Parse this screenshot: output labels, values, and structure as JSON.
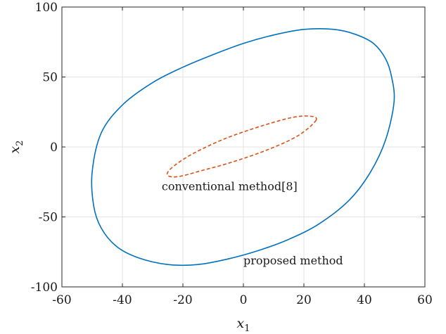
{
  "chart_data": {
    "type": "line",
    "xlim": [
      -60,
      60
    ],
    "ylim": [
      -100,
      100
    ],
    "xticks": [
      "-60",
      "-40",
      "-20",
      "0",
      "20",
      "40",
      "60"
    ],
    "yticks": [
      "100",
      "50",
      "0",
      "-50",
      "-100"
    ],
    "grid": true,
    "xlabel": {
      "base": "x",
      "sub": "1"
    },
    "ylabel": {
      "base": "x",
      "sub": "2"
    },
    "series": [
      {
        "name": "proposed method",
        "color": "#0072BD",
        "style": "solid",
        "x": [
          49.8,
          49.0,
          47.0,
          43.0,
          37.0,
          30.0,
          20.0,
          10.0,
          0.0,
          -10.0,
          -20.0,
          -30.0,
          -40.0,
          -47.0,
          -50.0,
          -49.5,
          -47.0,
          -42.0,
          -35.0,
          -25.0,
          -15.0,
          -5.0,
          5.0,
          15.0,
          25.0,
          35.0,
          42.0,
          47.0,
          49.8
        ],
        "y": [
          32.0,
          50.0,
          63.0,
          74.0,
          80.5,
          84.0,
          84.0,
          80.0,
          74.0,
          66.0,
          57.0,
          46.0,
          30.0,
          10.0,
          -18.0,
          -42.0,
          -58.0,
          -71.0,
          -79.0,
          -84.0,
          -84.0,
          -80.0,
          -74.0,
          -66.0,
          -55.0,
          -38.0,
          -18.0,
          5.0,
          32.0
        ]
      },
      {
        "name": "conventional method[8]",
        "color": "#D95319",
        "style": "dashed",
        "x": [
          24.0,
          22.0,
          16.0,
          6.0,
          -6.0,
          -16.0,
          -22.0,
          -25.0,
          -24.5,
          -21.0,
          -14.0,
          -4.0,
          8.0,
          18.0,
          24.0
        ],
        "y": [
          19.0,
          22.0,
          21.0,
          15.0,
          6.0,
          -4.0,
          -12.0,
          -18.0,
          -21.0,
          -21.0,
          -17.0,
          -11.0,
          -2.0,
          8.0,
          19.0
        ]
      }
    ],
    "annotations": [
      {
        "text": "conventional method[8]",
        "x": -27.0,
        "y": -31.0
      },
      {
        "text": "proposed method",
        "x": 0.0,
        "y": -84.0
      }
    ]
  }
}
